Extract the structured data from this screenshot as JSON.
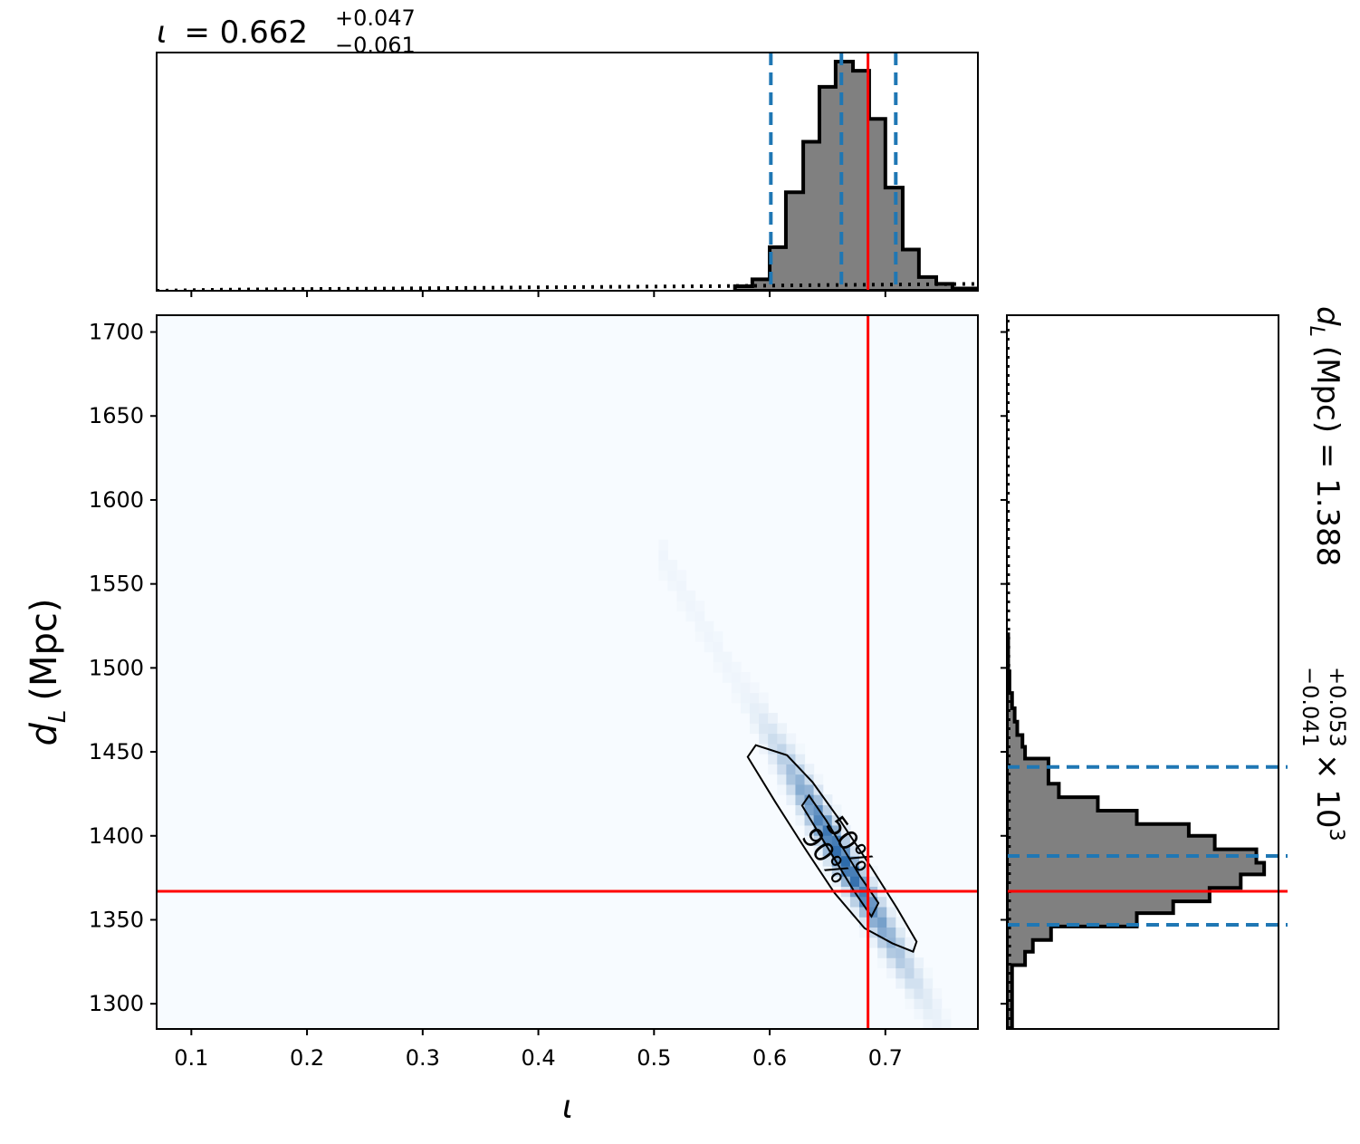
{
  "colors": {
    "hist_fill": "#808080",
    "hist_edge": "#000000",
    "quantile_line": "#1f77b4",
    "truth_line": "#ff0000",
    "heatmap_low": "#f7fbff",
    "heatmap_high": "#08519c",
    "axis": "#000000"
  },
  "chart_data": {
    "type": "corner",
    "title_iota": {
      "symbol": "ι",
      "equals": "= 0.662",
      "sup": "+0.047",
      "sub": "−0.061"
    },
    "title_dL": {
      "prefix": "d",
      "prefix_sub": "L",
      "unit": "(Mpc) = 1.388",
      "sup": "+0.053",
      "sub": "−0.041",
      "suffix": "× 10",
      "exp": "3"
    },
    "xlabel": "ι",
    "ylabel": {
      "main": "d",
      "sub": "L",
      "unit": "(Mpc)"
    },
    "xlim": [
      0.07,
      0.78
    ],
    "ylim": [
      1285,
      1710
    ],
    "x_ticks": [
      "0.1",
      "0.2",
      "0.3",
      "0.4",
      "0.5",
      "0.6",
      "0.7"
    ],
    "y_ticks": [
      "1300",
      "1350",
      "1400",
      "1450",
      "1500",
      "1550",
      "1600",
      "1650",
      "1700"
    ],
    "truth": {
      "iota": 0.685,
      "dL": 1367
    },
    "iota_quantiles": [
      0.601,
      0.662,
      0.709
    ],
    "dL_quantiles": [
      1347,
      1388,
      1441
    ],
    "iota_hist": {
      "edges": [
        0.57,
        0.585,
        0.6,
        0.614,
        0.629,
        0.643,
        0.657,
        0.672,
        0.686,
        0.7,
        0.715,
        0.729,
        0.744,
        0.758,
        0.78
      ],
      "counts": [
        0.02,
        0.05,
        0.19,
        0.43,
        0.65,
        0.89,
        1.0,
        0.96,
        0.75,
        0.45,
        0.18,
        0.06,
        0.03,
        0.01
      ]
    },
    "iota_prior": [
      [
        0.07,
        0.0
      ],
      [
        0.13,
        0.005
      ],
      [
        0.28,
        0.01
      ],
      [
        0.4,
        0.015
      ],
      [
        0.55,
        0.02
      ],
      [
        0.65,
        0.025
      ],
      [
        0.78,
        0.03
      ]
    ],
    "dL_hist": {
      "edges": [
        1285,
        1323,
        1331,
        1338,
        1346,
        1354,
        1361,
        1369,
        1377,
        1384,
        1392,
        1400,
        1407,
        1415,
        1423,
        1431,
        1438,
        1446,
        1453,
        1460,
        1468,
        1476,
        1485,
        1498,
        1520
      ],
      "counts": [
        0.02,
        0.07,
        0.1,
        0.17,
        0.5,
        0.64,
        0.78,
        0.9,
        0.99,
        0.96,
        0.8,
        0.7,
        0.5,
        0.35,
        0.2,
        0.16,
        0.16,
        0.07,
        0.06,
        0.04,
        0.03,
        0.02,
        0.01,
        0.005
      ]
    },
    "dL_prior": [
      [
        1285,
        0.01
      ],
      [
        1400,
        0.008
      ],
      [
        1500,
        0.006
      ],
      [
        1600,
        0.004
      ],
      [
        1710,
        0.003
      ]
    ],
    "contours": [
      {
        "label": "50%",
        "points": [
          [
            0.628,
            1418
          ],
          [
            0.643,
            1401
          ],
          [
            0.658,
            1384
          ],
          [
            0.673,
            1367
          ],
          [
            0.688,
            1352
          ],
          [
            0.694,
            1360
          ],
          [
            0.679,
            1375
          ],
          [
            0.664,
            1392
          ],
          [
            0.649,
            1409
          ],
          [
            0.634,
            1424
          ]
        ]
      },
      {
        "label": "90%",
        "points": [
          [
            0.581,
            1447
          ],
          [
            0.605,
            1420
          ],
          [
            0.63,
            1393
          ],
          [
            0.656,
            1366
          ],
          [
            0.682,
            1345
          ],
          [
            0.706,
            1336
          ],
          [
            0.724,
            1331
          ],
          [
            0.727,
            1337
          ],
          [
            0.71,
            1357
          ],
          [
            0.688,
            1381
          ],
          [
            0.662,
            1408
          ],
          [
            0.637,
            1432
          ],
          [
            0.615,
            1448
          ],
          [
            0.588,
            1454
          ]
        ]
      }
    ],
    "contour_labels": [
      "50%",
      "90%"
    ]
  }
}
